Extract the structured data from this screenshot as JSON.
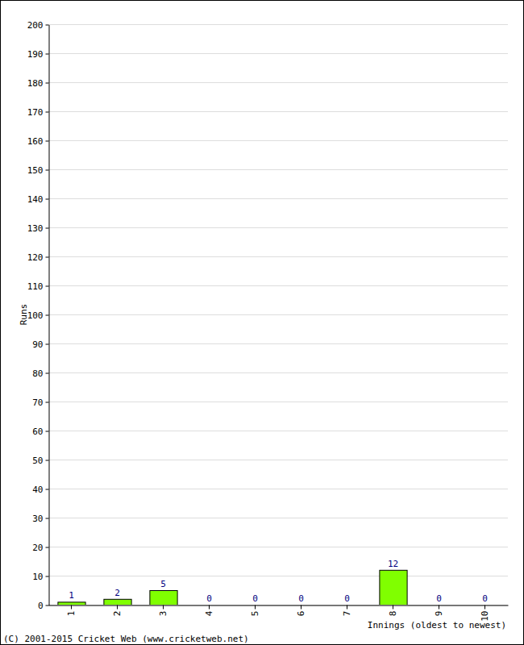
{
  "chart_data": {
    "type": "bar",
    "categories": [
      "1",
      "2",
      "3",
      "4",
      "5",
      "6",
      "7",
      "8",
      "9",
      "10"
    ],
    "values": [
      1,
      2,
      5,
      0,
      0,
      0,
      0,
      12,
      0,
      0
    ],
    "color": "#80ff00",
    "xlabel": "Innings (oldest to newest)",
    "ylabel": "Runs",
    "annotations": [
      "(C) 2001-2015 Cricket Web (www.cricketweb.net)"
    ],
    "ylim": [
      0,
      200
    ],
    "yticks": [
      0,
      10,
      20,
      30,
      40,
      50,
      60,
      70,
      80,
      90,
      100,
      110,
      120,
      130,
      140,
      150,
      160,
      170,
      180,
      190,
      200
    ],
    "grid": true,
    "data_labels": true
  }
}
